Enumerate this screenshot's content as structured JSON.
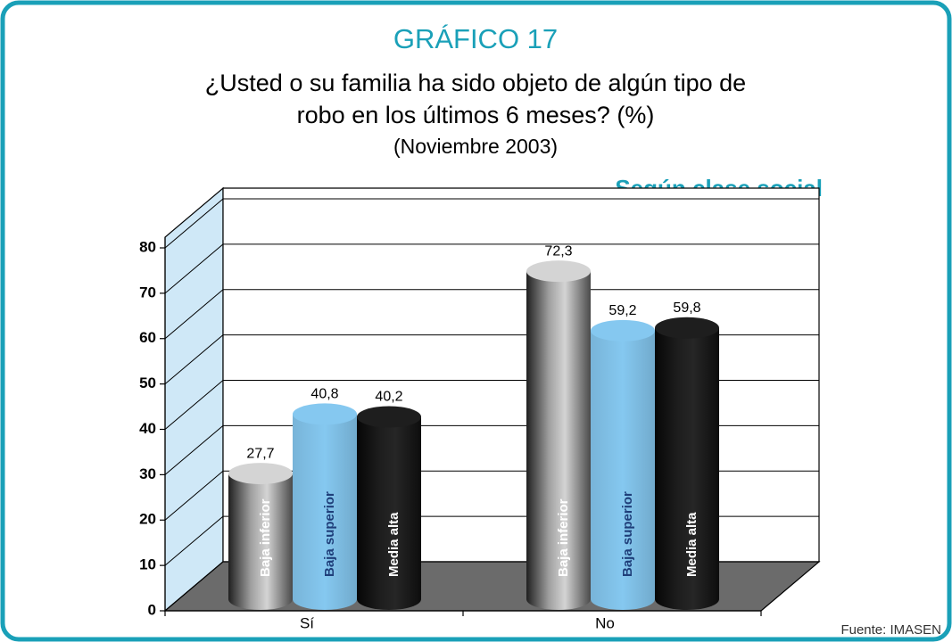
{
  "chart_data": {
    "type": "cylinder_bar",
    "title": "GRÁFICO 17",
    "subtitle_lines": [
      "¿Usted o su familia ha sido objeto de algún tipo de",
      "robo en los últimos 6 meses? (%)",
      "(Noviembre 2003)"
    ],
    "annotation": "Según clase social",
    "source": "Fuente: IMASEN",
    "categories": [
      "Sí",
      "No"
    ],
    "series": [
      {
        "name": "Baja inferior",
        "color": "#d4d4d4",
        "values": [
          27.7,
          72.3
        ],
        "value_labels": [
          "27,7",
          "72,3"
        ]
      },
      {
        "name": "Baja superior",
        "color": "#85c8f0",
        "values": [
          40.8,
          59.2
        ],
        "value_labels": [
          "40,8",
          "59,2"
        ]
      },
      {
        "name": "Media alta",
        "color": "#262626",
        "values": [
          40.2,
          59.8
        ],
        "value_labels": [
          "40,2",
          "59,8"
        ]
      }
    ],
    "ylim": [
      0,
      80
    ],
    "yticks": [
      0,
      10,
      20,
      30,
      40,
      50,
      60,
      70,
      80
    ],
    "grid": true
  }
}
